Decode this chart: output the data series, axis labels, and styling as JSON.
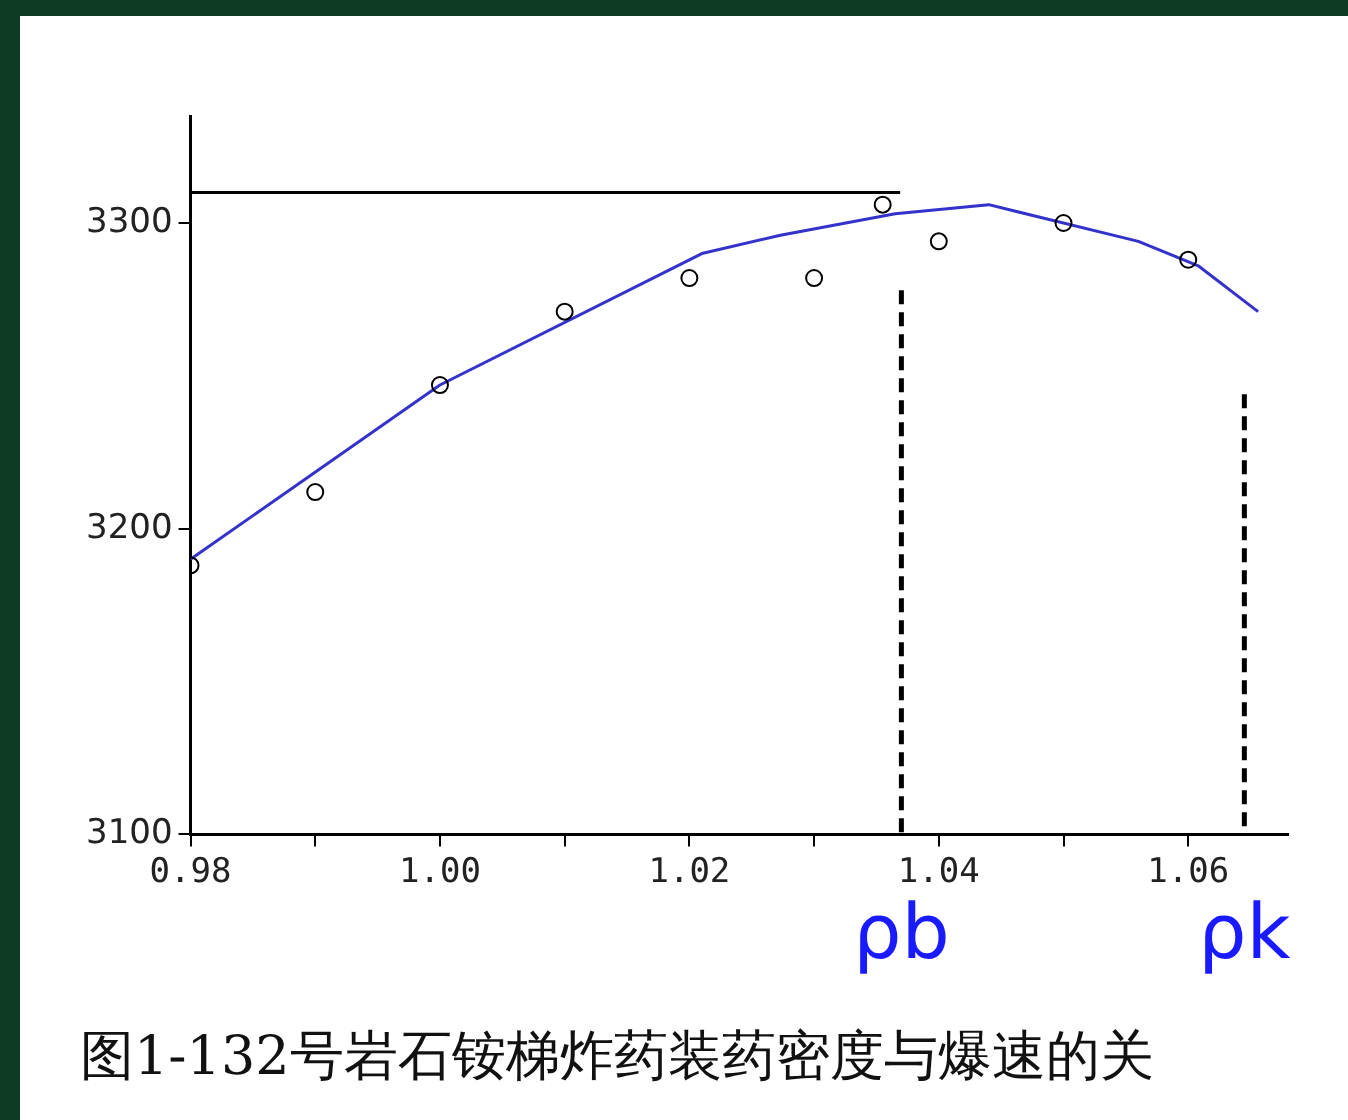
{
  "chart_data": {
    "type": "scatter",
    "title": "图1-132号岩石铵梯炸药装药密度与爆速的关",
    "xlim": [
      0.98,
      1.068
    ],
    "ylim": [
      3100,
      3335
    ],
    "xticks": [
      0.98,
      {
        "value": 0.99,
        "label": null
      },
      {
        "value": 1.0,
        "label": "1.00"
      },
      {
        "value": 1.01,
        "label": null
      },
      1.02,
      {
        "value": 1.03,
        "label": null
      },
      1.04,
      {
        "value": 1.05,
        "label": null
      },
      1.06
    ],
    "yticks": [
      3100,
      3200,
      3300
    ],
    "grid": false,
    "legend": false,
    "series": [
      {
        "marker": "circle",
        "color": "#000000",
        "x": [
          0.98,
          0.99,
          1.0,
          1.01,
          1.02,
          1.03,
          1.0355,
          1.04,
          1.05,
          1.06
        ],
        "values": [
          3188,
          3212,
          3247,
          3271,
          3282,
          3282,
          3306,
          3294,
          3300,
          3288
        ]
      },
      {
        "type": "line",
        "marker": "none",
        "line_style": "solid",
        "color": "#3333cc",
        "x": [
          0.98,
          1.0,
          1.021,
          1.0273,
          1.0365,
          1.044,
          1.056,
          1.0608,
          1.0656
        ],
        "values": [
          3190,
          3247,
          3290,
          3296,
          3303,
          3306,
          3294,
          3286,
          3271
        ]
      },
      {
        "type": "line",
        "marker": "none",
        "line_style": "solid",
        "color": "#000000",
        "x": [
          0.98,
          1.0369
        ],
        "values": [
          3310,
          3310
        ]
      },
      {
        "type": "line",
        "marker": "none",
        "line_style": "dashed",
        "color": "#000000",
        "x": [
          1.037,
          1.037
        ],
        "values": [
          3278,
          3100
        ]
      },
      {
        "type": "line",
        "marker": "none",
        "line_style": "dashed",
        "color": "#000000",
        "x": [
          1.0645,
          1.0645
        ],
        "values": [
          3244,
          3100
        ]
      }
    ],
    "annotations": [
      "ρb",
      "ρk"
    ]
  }
}
